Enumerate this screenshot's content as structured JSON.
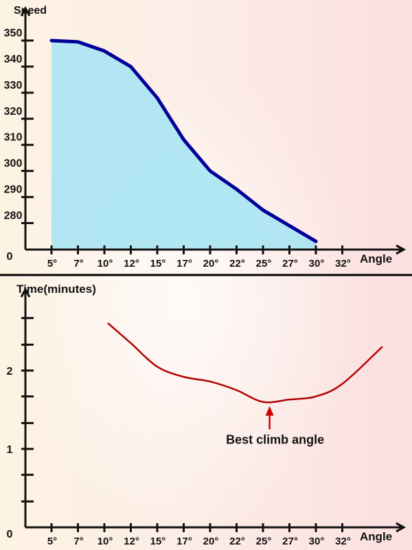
{
  "chart_data": [
    {
      "type": "area",
      "ylabel": "Speed",
      "xlabel": "Angle",
      "origin_label": "0",
      "x_ticks": [
        "5°",
        "7°",
        "10°",
        "12°",
        "15°",
        "17°",
        "20°",
        "22°",
        "25°",
        "27°",
        "30°",
        "32°"
      ],
      "y_ticks": [
        280,
        290,
        300,
        310,
        320,
        330,
        340,
        350
      ],
      "x": [
        "5°",
        "7°",
        "10°",
        "12°",
        "15°",
        "17°",
        "20°",
        "22°",
        "25°",
        "27°",
        "30°"
      ],
      "values": [
        350,
        349.5,
        346,
        340,
        328,
        312,
        300,
        293,
        285,
        279,
        273
      ],
      "line_color": "#000099",
      "fill_color": "#a8e4f3"
    },
    {
      "type": "line",
      "ylabel": "Time(minutes)",
      "xlabel": "Angle",
      "origin_label": "0",
      "x_ticks": [
        "5°",
        "7°",
        "10°",
        "12°",
        "15°",
        "17°",
        "20°",
        "22°",
        "25°",
        "27°",
        "30°",
        "32°"
      ],
      "y_ticks": [
        1,
        2
      ],
      "x": [
        10.3,
        12,
        15,
        17,
        20,
        22,
        25,
        27,
        30,
        32,
        35
      ],
      "values": [
        2.6,
        2.35,
        2.05,
        1.92,
        1.86,
        1.75,
        1.6,
        1.63,
        1.67,
        1.83,
        2.3
      ],
      "line_color": "#b30000",
      "annotation": {
        "text": "Best climb angle",
        "x": 25.5,
        "y": 1.6,
        "color": "#cc0000"
      }
    }
  ]
}
